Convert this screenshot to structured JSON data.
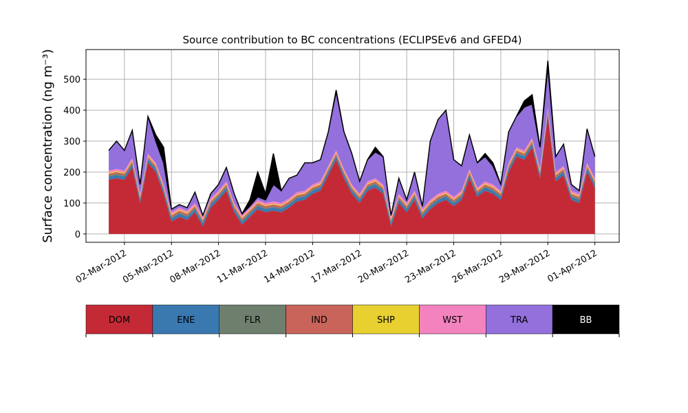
{
  "chart_data": {
    "type": "stacked_area",
    "title": "Source contribution to BC concentrations (ECLIPSEv6 and GFED4)",
    "y_label": "Surface concentration (ng m⁻³)",
    "x": [
      1,
      1.5,
      2,
      2.5,
      3,
      3.5,
      4,
      4.5,
      5,
      5.5,
      6,
      6.5,
      7,
      7.5,
      8,
      8.5,
      9,
      9.5,
      10,
      10.5,
      11,
      11.5,
      12,
      12.5,
      13,
      13.5,
      14,
      14.5,
      15,
      15.5,
      16,
      16.5,
      17,
      17.5,
      18,
      18.5,
      19,
      19.5,
      20,
      20.5,
      21,
      21.5,
      22,
      22.5,
      23,
      23.5,
      24,
      24.5,
      25,
      25.5,
      26,
      26.5,
      27,
      27.5,
      28,
      28.5,
      29,
      29.5,
      30,
      30.5,
      31,
      31.5,
      32
    ],
    "xlim": [
      -0.45,
      33.55
    ],
    "xticks": [
      {
        "value": 2,
        "label": "02-Mar-2012"
      },
      {
        "value": 5,
        "label": "05-Mar-2012"
      },
      {
        "value": 8,
        "label": "08-Mar-2012"
      },
      {
        "value": 11,
        "label": "11-Mar-2012"
      },
      {
        "value": 14,
        "label": "14-Mar-2012"
      },
      {
        "value": 17,
        "label": "17-Mar-2012"
      },
      {
        "value": 20,
        "label": "20-Mar-2012"
      },
      {
        "value": 23,
        "label": "23-Mar-2012"
      },
      {
        "value": 26,
        "label": "26-Mar-2012"
      },
      {
        "value": 29,
        "label": "29-Mar-2012"
      },
      {
        "value": 32,
        "label": "01-Apr-2012"
      }
    ],
    "ylim": [
      -27,
      596
    ],
    "yticks": [
      0,
      100,
      200,
      300,
      400,
      500
    ],
    "grid": true,
    "legend": "bottom",
    "series": [
      {
        "name": "DOM",
        "color": "#c42a36",
        "values": [
          175,
          180,
          175,
          215,
          100,
          230,
          200,
          130,
          40,
          55,
          45,
          70,
          25,
          85,
          110,
          140,
          70,
          30,
          55,
          80,
          70,
          75,
          70,
          85,
          105,
          110,
          130,
          140,
          190,
          240,
          180,
          130,
          100,
          140,
          150,
          130,
          25,
          100,
          70,
          110,
          50,
          80,
          100,
          110,
          90,
          110,
          180,
          120,
          140,
          130,
          110,
          200,
          250,
          240,
          280,
          180,
          380,
          170,
          190,
          110,
          100,
          200,
          150
        ]
      },
      {
        "name": "ENE",
        "color": "#3a78b0",
        "values": [
          10,
          10,
          10,
          10,
          10,
          10,
          10,
          10,
          10,
          10,
          10,
          10,
          10,
          10,
          10,
          10,
          10,
          10,
          10,
          10,
          10,
          10,
          10,
          10,
          10,
          10,
          10,
          10,
          10,
          10,
          10,
          10,
          10,
          10,
          10,
          10,
          10,
          10,
          10,
          10,
          10,
          10,
          10,
          10,
          10,
          10,
          10,
          10,
          10,
          10,
          10,
          10,
          10,
          10,
          10,
          10,
          10,
          10,
          10,
          10,
          10,
          10,
          10
        ]
      },
      {
        "name": "FLR",
        "color": "#6e7f6e",
        "values": [
          4,
          4,
          4,
          4,
          4,
          4,
          4,
          4,
          4,
          4,
          4,
          4,
          4,
          4,
          4,
          4,
          4,
          4,
          4,
          4,
          4,
          4,
          4,
          4,
          4,
          4,
          4,
          4,
          4,
          4,
          4,
          4,
          4,
          4,
          4,
          4,
          4,
          4,
          4,
          4,
          4,
          4,
          4,
          4,
          4,
          4,
          4,
          4,
          4,
          4,
          4,
          4,
          4,
          4,
          4,
          4,
          4,
          4,
          4,
          4,
          4,
          4,
          4
        ]
      },
      {
        "name": "IND",
        "color": "#c8645a",
        "values": [
          6,
          6,
          6,
          6,
          6,
          6,
          6,
          6,
          6,
          6,
          6,
          6,
          6,
          6,
          6,
          6,
          6,
          6,
          6,
          6,
          6,
          6,
          6,
          6,
          6,
          6,
          6,
          6,
          6,
          6,
          6,
          6,
          6,
          6,
          6,
          6,
          6,
          6,
          6,
          6,
          6,
          6,
          6,
          6,
          6,
          6,
          6,
          6,
          6,
          6,
          6,
          6,
          6,
          6,
          6,
          6,
          6,
          6,
          6,
          6,
          6,
          6,
          6
        ]
      },
      {
        "name": "SHP",
        "color": "#e8d030",
        "values": [
          3,
          3,
          3,
          3,
          3,
          3,
          3,
          3,
          3,
          3,
          3,
          3,
          3,
          3,
          3,
          3,
          3,
          3,
          3,
          3,
          3,
          3,
          3,
          3,
          3,
          3,
          3,
          3,
          3,
          3,
          3,
          3,
          3,
          3,
          3,
          3,
          3,
          3,
          3,
          3,
          3,
          3,
          3,
          3,
          3,
          3,
          3,
          3,
          3,
          3,
          3,
          3,
          3,
          3,
          3,
          3,
          3,
          3,
          3,
          3,
          3,
          3,
          3
        ]
      },
      {
        "name": "WST",
        "color": "#f383bf",
        "values": [
          7,
          7,
          7,
          7,
          7,
          7,
          7,
          7,
          7,
          7,
          7,
          7,
          7,
          7,
          7,
          7,
          7,
          7,
          7,
          7,
          7,
          7,
          7,
          7,
          7,
          7,
          7,
          7,
          7,
          7,
          7,
          7,
          7,
          7,
          7,
          7,
          7,
          7,
          7,
          7,
          7,
          7,
          7,
          7,
          7,
          7,
          7,
          7,
          7,
          7,
          7,
          7,
          7,
          7,
          7,
          7,
          7,
          7,
          7,
          7,
          7,
          7,
          7
        ]
      },
      {
        "name": "TRA",
        "color": "#9370db",
        "values": [
          65,
          90,
          65,
          90,
          30,
          120,
          70,
          70,
          10,
          10,
          10,
          35,
          5,
          15,
          20,
          45,
          30,
          5,
          5,
          10,
          10,
          55,
          40,
          65,
          55,
          90,
          70,
          70,
          110,
          190,
          120,
          100,
          40,
          70,
          85,
          90,
          5,
          50,
          10,
          60,
          10,
          190,
          240,
          260,
          120,
          80,
          110,
          80,
          80,
          60,
          20,
          100,
          100,
          140,
          110,
          70,
          130,
          50,
          70,
          20,
          10,
          110,
          70
        ]
      },
      {
        "name": "BB",
        "color": "#000000",
        "values": [
          0,
          0,
          0,
          0,
          0,
          0,
          20,
          50,
          0,
          0,
          0,
          0,
          0,
          0,
          0,
          0,
          0,
          0,
          20,
          80,
          20,
          100,
          0,
          0,
          0,
          0,
          0,
          0,
          0,
          5,
          0,
          0,
          0,
          0,
          15,
          0,
          0,
          0,
          0,
          0,
          0,
          0,
          0,
          0,
          0,
          0,
          0,
          0,
          10,
          10,
          0,
          0,
          0,
          20,
          30,
          0,
          20,
          0,
          0,
          0,
          0,
          0,
          0
        ]
      }
    ]
  }
}
